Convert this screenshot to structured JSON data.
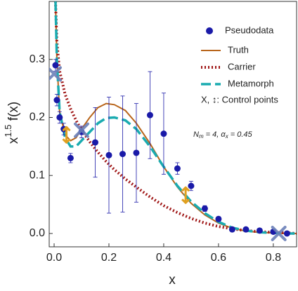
{
  "chart_data": {
    "type": "scatter-lines",
    "y_label": {
      "base": "x",
      "sup": "1.5",
      "rest": " f(x)"
    },
    "x_label": "x",
    "xlim": [
      -0.018,
      0.885
    ],
    "ylim": [
      -0.023,
      0.4
    ],
    "xticks": [
      {
        "value": 0,
        "label": "0.0"
      },
      0.2,
      0.4,
      0.6,
      0.8
    ],
    "yticks": [
      {
        "value": 0,
        "label": "0.0"
      },
      0.1,
      0.2,
      0.3
    ],
    "legend": "upper right",
    "points": {
      "name": "Pseudodata",
      "color": "#1a1aa8",
      "x": [
        0.005,
        0.01,
        0.02,
        0.035,
        0.06,
        0.1,
        0.15,
        0.2,
        0.25,
        0.3,
        0.35,
        0.4,
        0.45,
        0.5,
        0.55,
        0.6,
        0.65,
        0.7,
        0.75,
        0.8,
        0.85
      ],
      "values": [
        0.29,
        0.23,
        0.2,
        0.18,
        0.13,
        0.175,
        0.157,
        0.135,
        0.137,
        0.139,
        0.204,
        0.172,
        0.112,
        0.082,
        0.043,
        0.025,
        0.007,
        0.007,
        0.005,
        0.003,
        0.0
      ],
      "errors": [
        0.01,
        0.01,
        0.01,
        0.01,
        0.008,
        0.01,
        0.06,
        0.1,
        0.1,
        0.085,
        0.075,
        0.07,
        0.01,
        0.008,
        0.005,
        0.004,
        0.003,
        0.003,
        0.002,
        0.002,
        0.002
      ]
    },
    "curve_x": [
      0.005,
      0.01,
      0.02,
      0.04,
      0.06,
      0.08,
      0.1,
      0.13,
      0.16,
      0.19,
      0.22,
      0.26,
      0.3,
      0.35,
      0.4,
      0.45,
      0.5,
      0.55,
      0.6,
      0.65,
      0.7,
      0.75,
      0.8,
      0.85,
      0.885
    ],
    "series": [
      {
        "name": "Truth",
        "color": "#b8651b",
        "dash": "solid",
        "values": [
          0.4,
          0.3,
          0.21,
          0.17,
          0.16,
          0.165,
          0.18,
          0.2,
          0.217,
          0.224,
          0.222,
          0.212,
          0.19,
          0.155,
          0.115,
          0.08,
          0.052,
          0.032,
          0.018,
          0.009,
          0.004,
          0.002,
          0.001,
          0,
          0
        ]
      },
      {
        "name": "Carrier",
        "color": "#a01818",
        "dash": "dotted",
        "values": [
          0.4,
          0.33,
          0.28,
          0.24,
          0.215,
          0.195,
          0.178,
          0.158,
          0.14,
          0.124,
          0.11,
          0.094,
          0.08,
          0.063,
          0.048,
          0.036,
          0.026,
          0.018,
          0.012,
          0.008,
          0.005,
          0.003,
          0.002,
          0.001,
          0
        ]
      },
      {
        "name": "Metamorph",
        "color": "#1aabb0",
        "dash": "dashed",
        "values": [
          0.4,
          0.3,
          0.21,
          0.165,
          0.15,
          0.15,
          0.16,
          0.175,
          0.19,
          0.199,
          0.2,
          0.195,
          0.18,
          0.15,
          0.115,
          0.082,
          0.055,
          0.035,
          0.02,
          0.01,
          0.005,
          0.002,
          0.001,
          0,
          0
        ]
      }
    ],
    "control_points": {
      "name": "X, ↕: Control points",
      "x_marker_color": "#6a80b8",
      "arrow_color": "#e0a020",
      "x_markers": {
        "x": [
          0.0,
          0.1,
          0.82
        ],
        "values": [
          0.275,
          0.178,
          0.0
        ]
      },
      "arrows": {
        "x": [
          0.045,
          0.48
        ],
        "values": [
          0.17,
          0.066
        ]
      }
    },
    "annotation": [
      {
        "text": "N"
      },
      {
        "text": "m",
        "sub": true
      },
      {
        "text": " = 4, "
      },
      {
        "text": "α"
      },
      {
        "text": "x",
        "sub": true
      },
      {
        "text": " = 0.45"
      }
    ]
  }
}
